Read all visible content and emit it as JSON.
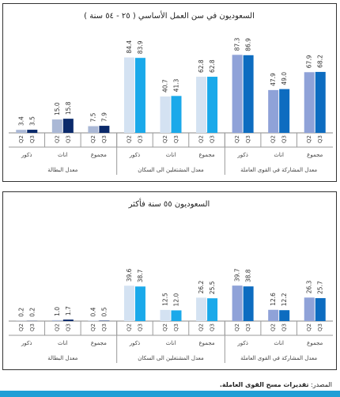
{
  "chart_data": [
    {
      "type": "bar",
      "title": "السعوديون في سن العمل الأساسي ( ٢٥ - ٥٤ سنة )",
      "series_names": [
        "Q2",
        "Q3"
      ],
      "groups": [
        {
          "name": "معدل البطالة",
          "categories": [
            {
              "label": "ذكور",
              "q2": 3.4,
              "q3": 3.5
            },
            {
              "label": "اناث",
              "q2": 15.0,
              "q3": 15.8
            },
            {
              "label": "مجموع",
              "q2": 7.5,
              "q3": 7.9
            }
          ]
        },
        {
          "name": "معدل المشتغلين الى السكان",
          "categories": [
            {
              "label": "ذكور",
              "q2": 84.4,
              "q3": 83.9
            },
            {
              "label": "اناث",
              "q2": 40.7,
              "q3": 41.3
            },
            {
              "label": "مجموع",
              "q2": 62.8,
              "q3": 62.8
            }
          ]
        },
        {
          "name": "معدل المشاركة في القوى العاملة",
          "categories": [
            {
              "label": "ذكور",
              "q2": 87.3,
              "q3": 86.9
            },
            {
              "label": "اناث",
              "q2": 47.9,
              "q3": 49.0
            },
            {
              "label": "مجموع",
              "q2": 67.9,
              "q3": 68.2
            }
          ]
        }
      ],
      "ylim": [
        0,
        100
      ]
    },
    {
      "type": "bar",
      "title": "السعوديون ٥٥ سنة فأكثر",
      "series_names": [
        "Q2",
        "Q3"
      ],
      "groups": [
        {
          "name": "معدل البطالة",
          "categories": [
            {
              "label": "ذكور",
              "q2": 0.2,
              "q3": 0.2
            },
            {
              "label": "اناث",
              "q2": 1.0,
              "q3": 1.7
            },
            {
              "label": "مجموع",
              "q2": 0.4,
              "q3": 0.5
            }
          ]
        },
        {
          "name": "معدل المشتغلين الى السكان",
          "categories": [
            {
              "label": "ذكور",
              "q2": 39.6,
              "q3": 38.7
            },
            {
              "label": "اناث",
              "q2": 12.5,
              "q3": 12.0
            },
            {
              "label": "مجموع",
              "q2": 26.2,
              "q3": 25.5
            }
          ]
        },
        {
          "name": "معدل المشاركة في القوى العاملة",
          "categories": [
            {
              "label": "ذكور",
              "q2": 39.7,
              "q3": 38.8
            },
            {
              "label": "اناث",
              "q2": 12.6,
              "q3": 12.2
            },
            {
              "label": "مجموع",
              "q2": 26.3,
              "q3": 25.7
            }
          ]
        }
      ],
      "ylim": [
        0,
        100
      ]
    }
  ],
  "colors": {
    "group1_q2": "#aab8d6",
    "group1_q3": "#0b2a6b",
    "group2_q2": "#d4e2f2",
    "group2_q3": "#1aa9ea",
    "group3_q2": "#8fa2d8",
    "group3_q3": "#0d6cc0"
  },
  "footer": {
    "label": "المصدر:",
    "source": "تقديرات مسح القوى العاملة."
  }
}
